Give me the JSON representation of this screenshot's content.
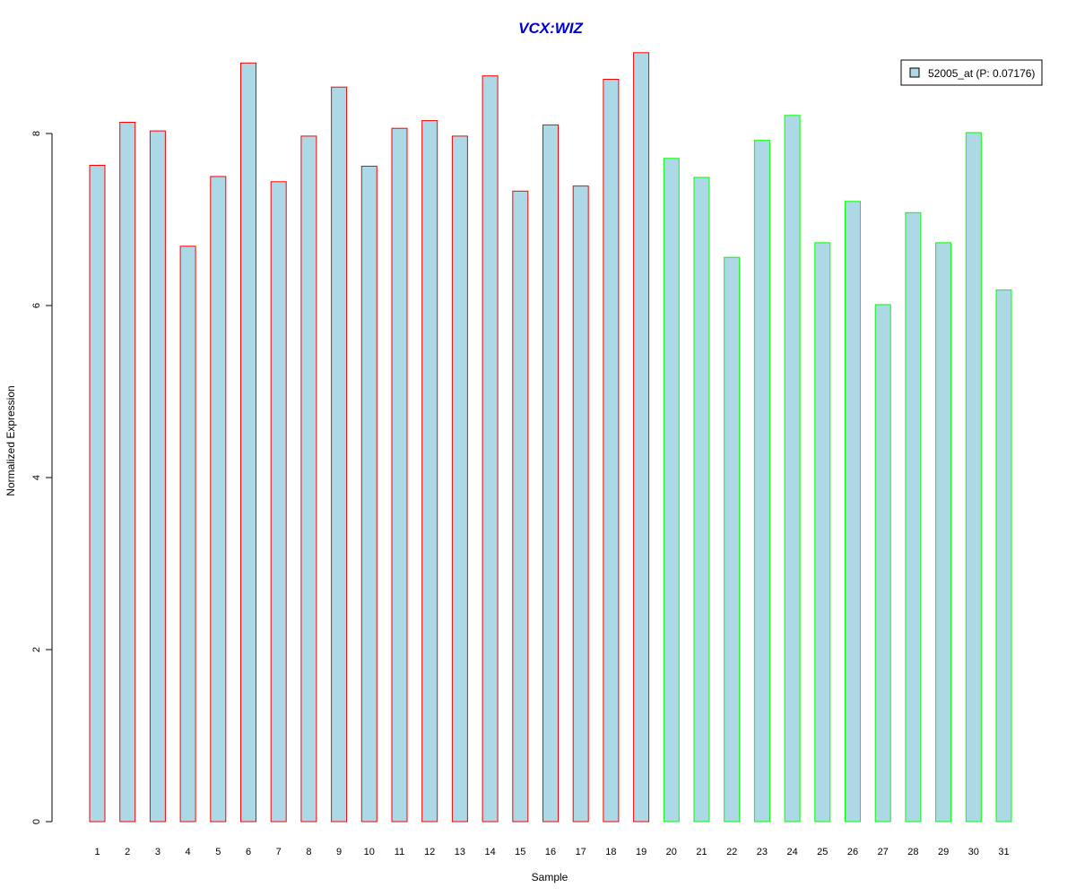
{
  "chart_data": {
    "type": "bar",
    "title": "VCX:WIZ",
    "xlabel": "Sample",
    "ylabel": "Normalized Expression",
    "ylim": [
      0,
      9
    ],
    "yticks": [
      0,
      2,
      4,
      6,
      8
    ],
    "grid": false,
    "legend": {
      "label": "52005_at (P: 0.07176)",
      "position": "top-right",
      "swatch_color": "#add8e6"
    },
    "colors": {
      "title": "#0000cd",
      "fill": "#add8e6",
      "group1_border": "#ff0000",
      "group2_border": "#00ff00"
    },
    "categories": [
      "1",
      "2",
      "3",
      "4",
      "5",
      "6",
      "7",
      "8",
      "9",
      "10",
      "11",
      "12",
      "13",
      "14",
      "15",
      "16",
      "17",
      "18",
      "19",
      "20",
      "21",
      "22",
      "23",
      "24",
      "25",
      "26",
      "27",
      "28",
      "29",
      "30",
      "31"
    ],
    "values": [
      7.63,
      8.13,
      8.03,
      6.69,
      7.5,
      8.82,
      7.44,
      7.97,
      8.54,
      7.62,
      8.06,
      8.15,
      7.97,
      8.67,
      7.33,
      8.1,
      7.39,
      8.63,
      8.94,
      7.71,
      7.49,
      6.56,
      7.92,
      8.21,
      6.73,
      7.21,
      6.01,
      7.08,
      6.73,
      8.01,
      6.18
    ],
    "groups": [
      1,
      1,
      1,
      1,
      1,
      1,
      1,
      1,
      1,
      1,
      1,
      1,
      1,
      1,
      1,
      1,
      1,
      1,
      1,
      2,
      2,
      2,
      2,
      2,
      2,
      2,
      2,
      2,
      2,
      2,
      2
    ]
  }
}
